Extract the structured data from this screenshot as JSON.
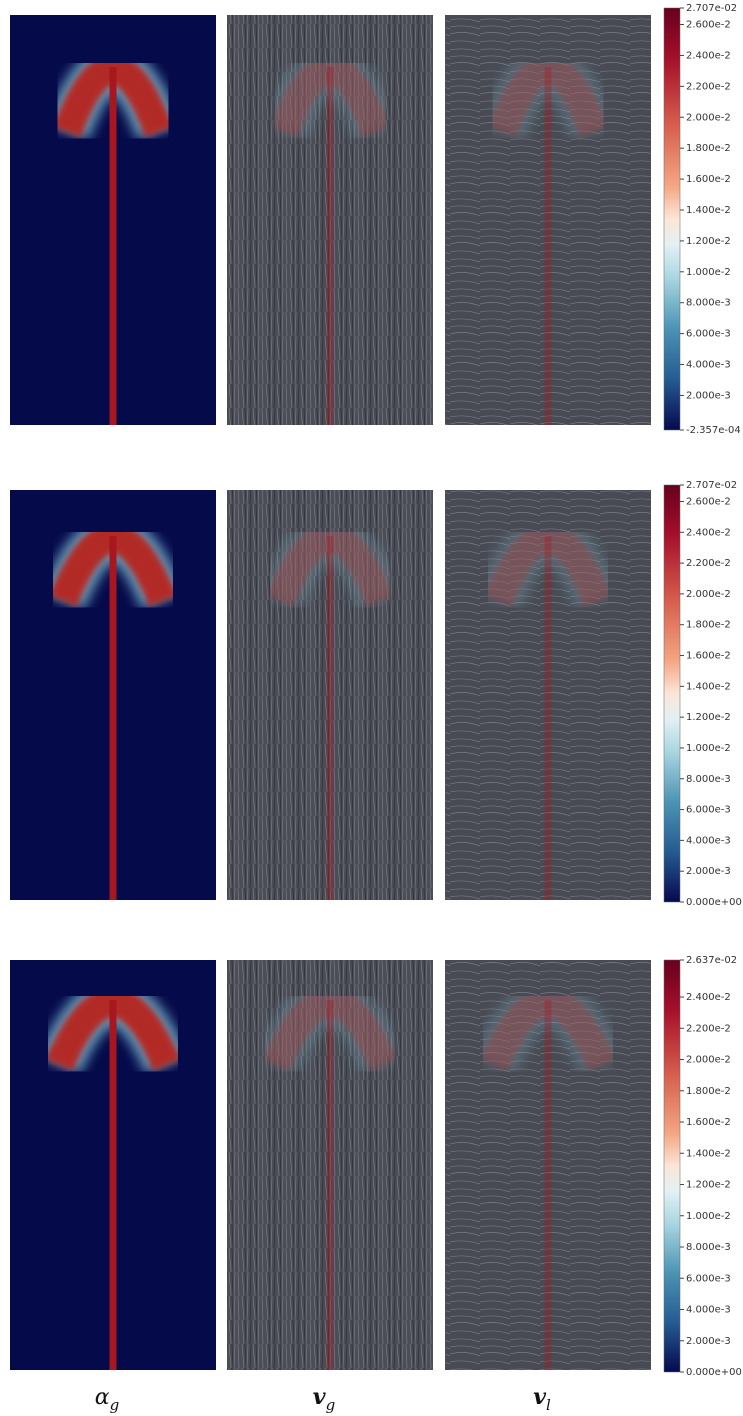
{
  "panels": [
    {
      "colorbar": {
        "max": {
          "value": 0.02707,
          "label": "2.707e-02"
        },
        "min": {
          "value": -0.0002357,
          "label": "-2.357e-04"
        },
        "ticks": [
          {
            "value": 0.026,
            "label": "2.600e-2"
          },
          {
            "value": 0.024,
            "label": "2.400e-2"
          },
          {
            "value": 0.022,
            "label": "2.200e-2"
          },
          {
            "value": 0.02,
            "label": "2.000e-2"
          },
          {
            "value": 0.018,
            "label": "1.800e-2"
          },
          {
            "value": 0.016,
            "label": "1.600e-2"
          },
          {
            "value": 0.014,
            "label": "1.400e-2"
          },
          {
            "value": 0.012,
            "label": "1.200e-2"
          },
          {
            "value": 0.01,
            "label": "1.000e-2"
          },
          {
            "value": 0.008,
            "label": "8.000e-3"
          },
          {
            "value": 0.006,
            "label": "6.000e-3"
          },
          {
            "value": 0.004,
            "label": "4.000e-3"
          },
          {
            "value": 0.002,
            "label": "2.000e-3"
          }
        ]
      }
    },
    {
      "colorbar": {
        "max": {
          "value": 0.02707,
          "label": "2.707e-02"
        },
        "min": {
          "value": 0,
          "label": "0.000e+00"
        },
        "ticks": [
          {
            "value": 0.026,
            "label": "2.600e-2"
          },
          {
            "value": 0.024,
            "label": "2.400e-2"
          },
          {
            "value": 0.022,
            "label": "2.200e-2"
          },
          {
            "value": 0.02,
            "label": "2.000e-2"
          },
          {
            "value": 0.018,
            "label": "1.800e-2"
          },
          {
            "value": 0.016,
            "label": "1.600e-2"
          },
          {
            "value": 0.014,
            "label": "1.400e-2"
          },
          {
            "value": 0.012,
            "label": "1.200e-2"
          },
          {
            "value": 0.01,
            "label": "1.000e-2"
          },
          {
            "value": 0.008,
            "label": "8.000e-3"
          },
          {
            "value": 0.006,
            "label": "6.000e-3"
          },
          {
            "value": 0.004,
            "label": "4.000e-3"
          },
          {
            "value": 0.002,
            "label": "2.000e-3"
          }
        ]
      }
    },
    {
      "colorbar": {
        "max": {
          "value": 0.02637,
          "label": "2.637e-02"
        },
        "min": {
          "value": 0,
          "label": "0.000e+00"
        },
        "ticks": [
          {
            "value": 0.024,
            "label": "2.400e-2"
          },
          {
            "value": 0.022,
            "label": "2.200e-2"
          },
          {
            "value": 0.02,
            "label": "2.000e-2"
          },
          {
            "value": 0.018,
            "label": "1.800e-2"
          },
          {
            "value": 0.016,
            "label": "1.600e-2"
          },
          {
            "value": 0.014,
            "label": "1.400e-2"
          },
          {
            "value": 0.012,
            "label": "1.200e-2"
          },
          {
            "value": 0.01,
            "label": "1.000e-2"
          },
          {
            "value": 0.008,
            "label": "8.000e-3"
          },
          {
            "value": 0.006,
            "label": "6.000e-3"
          },
          {
            "value": 0.004,
            "label": "4.000e-3"
          },
          {
            "value": 0.002,
            "label": "2.000e-3"
          }
        ]
      }
    }
  ],
  "column_labels": [
    {
      "symbol": "α",
      "sub": "g"
    },
    {
      "symbol": "v",
      "sub": "g"
    },
    {
      "symbol": "v",
      "sub": "l"
    }
  ]
}
